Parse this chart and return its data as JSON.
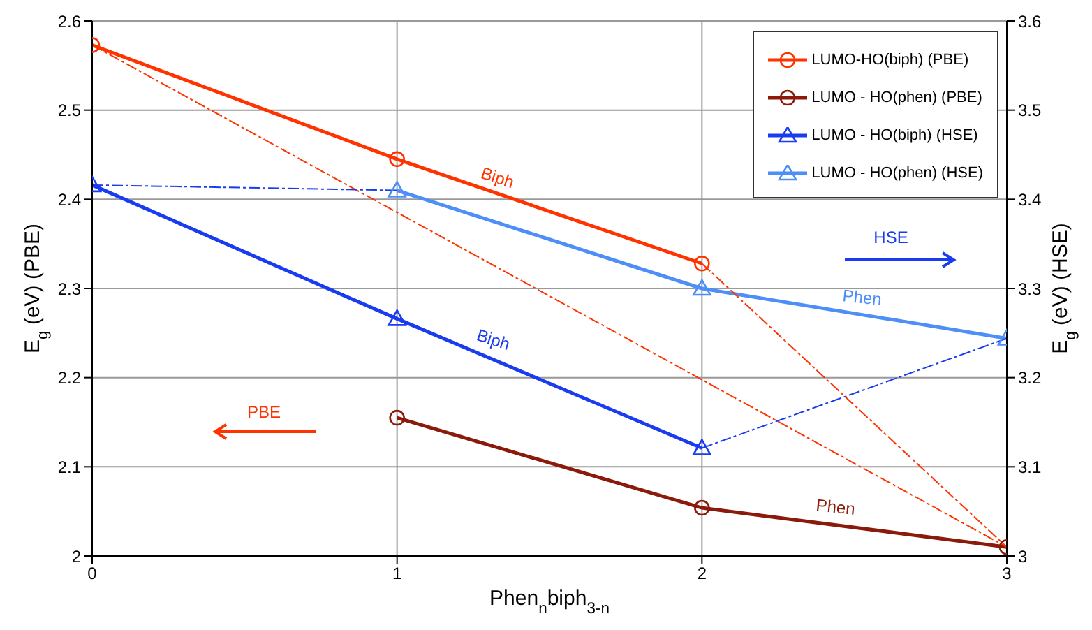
{
  "chart_data": {
    "type": "line",
    "xlabel": "Phen$_{n}$biph$_{3-n}$",
    "ylabel": "E$_{g}$ (eV) (PBE)",
    "y2label": "E$_{g}$ (eV) (HSE)",
    "xlim": [
      0,
      3
    ],
    "xticks": [
      0,
      1,
      2,
      3
    ],
    "ylim": [
      2,
      2.6
    ],
    "yticks": [
      2,
      2.1,
      2.2,
      2.3,
      2.4,
      2.5,
      2.6
    ],
    "y2lim": [
      3,
      3.6
    ],
    "y2ticks": [
      3,
      3.1,
      3.2,
      3.3,
      3.4,
      3.5,
      3.6
    ],
    "grid": true,
    "legend": "top right",
    "series": [
      {
        "name": "LUMO-HO(biph) (PBE)",
        "color": "#ff3300",
        "marker": "circle",
        "x": [
          0,
          1,
          2
        ],
        "values": [
          2.573,
          2.445,
          2.328
        ]
      },
      {
        "name": "LUMO - HO(phen) (PBE)",
        "color": "#8b1a0a",
        "marker": "circle",
        "x": [
          1,
          2,
          3
        ],
        "values": [
          2.155,
          2.054,
          2.01
        ]
      },
      {
        "name": "LUMO - HO(biph) (HSE)",
        "color": "#1a3cf0",
        "marker": "triangle",
        "axis": "y2",
        "x": [
          0,
          1,
          2
        ],
        "values": [
          3.416,
          3.266,
          3.121
        ]
      },
      {
        "name": "LUMO - HO(phen) (HSE)",
        "color": "#4d8ef7",
        "marker": "triangle",
        "axis": "y2",
        "x": [
          1,
          2,
          3
        ],
        "values": [
          3.41,
          3.3,
          3.244
        ]
      },
      {
        "color": "#ff3300",
        "marker": "none",
        "line_style": "dashed",
        "x": [
          0,
          3
        ],
        "values": [
          2.573,
          2.01
        ]
      },
      {
        "color": "#ff3300",
        "marker": "none",
        "line_style": "dashed",
        "x": [
          2,
          3
        ],
        "values": [
          2.328,
          2.01
        ]
      },
      {
        "color": "#1a3cf0",
        "marker": "none",
        "line_style": "dashed",
        "axis": "y2",
        "x": [
          0,
          1
        ],
        "values": [
          3.416,
          3.41
        ]
      },
      {
        "color": "#1a3cf0",
        "marker": "none",
        "line_style": "dashed",
        "axis": "y2",
        "x": [
          2,
          3
        ],
        "values": [
          3.121,
          3.244
        ]
      }
    ],
    "annotations": [
      "Biph",
      "Phen",
      "Biph",
      "Phen",
      "PBE",
      "HSE"
    ]
  }
}
